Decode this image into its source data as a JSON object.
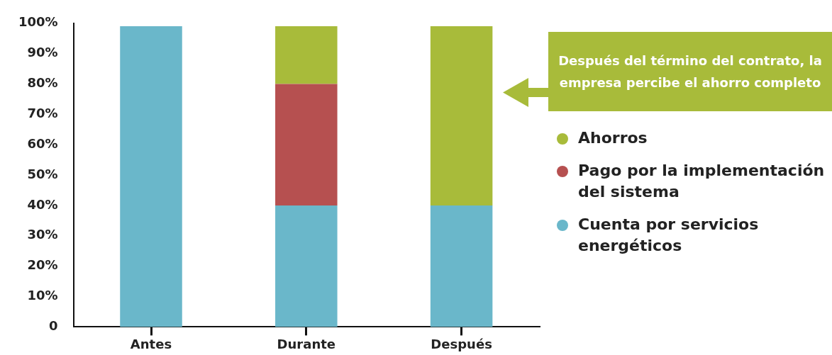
{
  "chart_data": {
    "type": "bar",
    "stacked": true,
    "categories": [
      "Antes",
      "Durante",
      "Después"
    ],
    "series": [
      {
        "name": "Cuenta por servicios energéticos",
        "color": "#6ab7ca",
        "values": [
          99,
          40,
          40
        ]
      },
      {
        "name": "Pago por la implementación del sistema",
        "color": "#b65050",
        "values": [
          0,
          40,
          0
        ]
      },
      {
        "name": "Ahorros",
        "color": "#a8bb3a",
        "values": [
          0,
          19,
          59
        ]
      }
    ],
    "ylim": [
      0,
      100
    ],
    "yticks": [
      0,
      {
        "value": 10,
        "label": "10%"
      },
      {
        "value": 20,
        "label": "20%"
      },
      {
        "value": 30,
        "label": "30%"
      },
      {
        "value": 40,
        "label": "40%"
      },
      {
        "value": 50,
        "label": "50%"
      },
      {
        "value": 60,
        "label": "60%"
      },
      {
        "value": 70,
        "label": "70%"
      },
      {
        "value": 80,
        "label": "80%"
      },
      {
        "value": 90,
        "label": "90%"
      },
      {
        "value": 100,
        "label": "100%"
      }
    ],
    "grid": false,
    "legend": "right",
    "annotations": [
      "Después del término del contrato, la empresa percibe el ahorro completo"
    ]
  }
}
